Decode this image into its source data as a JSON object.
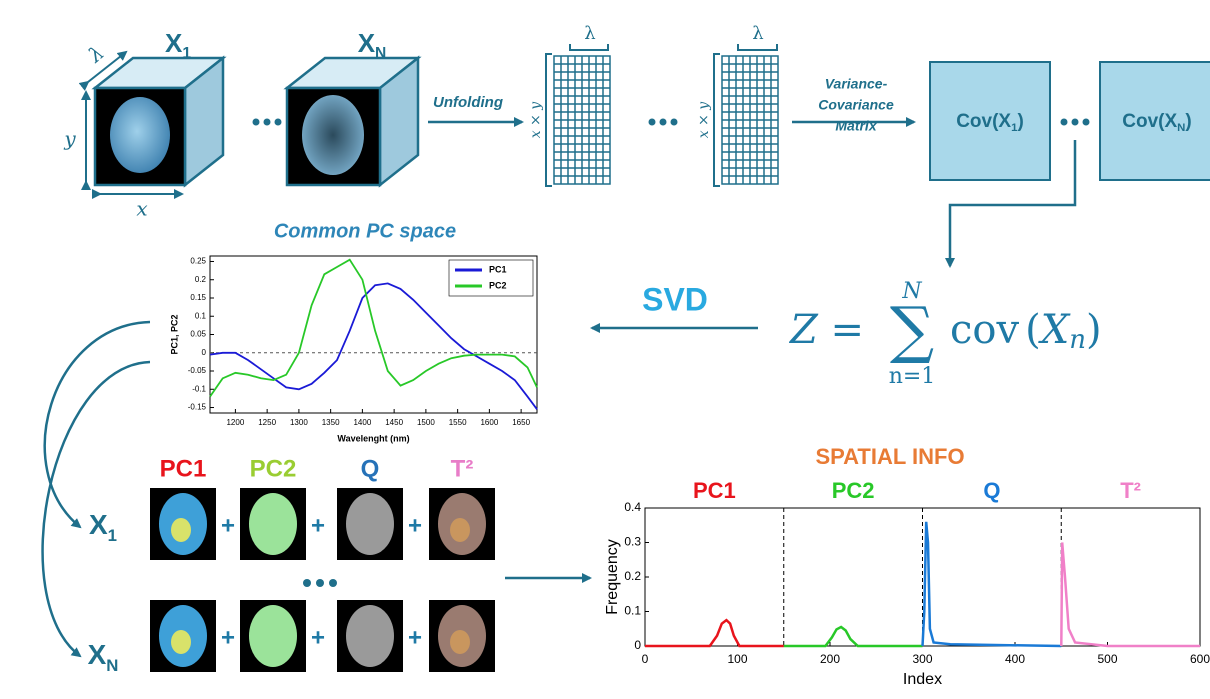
{
  "top": {
    "x1": {
      "base": "X",
      "sub": "1"
    },
    "xn": {
      "base": "X",
      "sub": "N"
    },
    "lambda": "λ",
    "y": "y",
    "x": "x",
    "unfolding": "Unfolding",
    "matrix_lambda": "λ",
    "matrix_rows": "x × y",
    "vcm": [
      "Variance-",
      "Covariance",
      "Matrix"
    ],
    "cov1": {
      "base": "Cov(X",
      "sub": "1",
      "end": ")"
    },
    "covn": {
      "base": "Cov(X",
      "sub": "N",
      "end": ")"
    }
  },
  "pc_title": "Common PC space",
  "svd": "SVD",
  "formula": {
    "lhs": "Z =",
    "sigma": "∑",
    "upper": "N",
    "lower": "n=1",
    "term": "cov",
    "open": "(",
    "arg": "X",
    "arg_sub": "n",
    "close": ")"
  },
  "bottom": {
    "labels": [
      "PC1",
      "PC2",
      "Q",
      "T²"
    ],
    "label_colors": [
      "#e8141c",
      "#9acd32",
      "#2672b8",
      "#e87dc8"
    ],
    "x1": {
      "base": "X",
      "sub": "1"
    },
    "xn": {
      "base": "X",
      "sub": "N"
    },
    "plus": "+"
  },
  "chart_data": [
    {
      "type": "line",
      "x": [
        1160,
        1180,
        1200,
        1220,
        1240,
        1260,
        1280,
        1300,
        1320,
        1340,
        1360,
        1380,
        1400,
        1420,
        1440,
        1460,
        1480,
        1500,
        1520,
        1540,
        1560,
        1580,
        1600,
        1620,
        1640,
        1660,
        1675
      ],
      "series": [
        {
          "name": "PC1",
          "color": "#1a1ad6",
          "values": [
            -0.005,
            0.0,
            0.0,
            -0.02,
            -0.045,
            -0.07,
            -0.095,
            -0.1,
            -0.085,
            -0.055,
            -0.02,
            0.06,
            0.15,
            0.185,
            0.19,
            0.175,
            0.145,
            0.11,
            0.075,
            0.04,
            0.01,
            -0.01,
            -0.03,
            -0.05,
            -0.075,
            -0.12,
            -0.155
          ]
        },
        {
          "name": "PC2",
          "color": "#28c828",
          "values": [
            -0.12,
            -0.07,
            -0.055,
            -0.06,
            -0.07,
            -0.075,
            -0.06,
            0.0,
            0.13,
            0.215,
            0.235,
            0.255,
            0.2,
            0.06,
            -0.05,
            -0.09,
            -0.075,
            -0.05,
            -0.03,
            -0.015,
            -0.008,
            -0.005,
            -0.005,
            -0.005,
            -0.01,
            -0.04,
            -0.095
          ]
        }
      ],
      "xlim": [
        1160,
        1675
      ],
      "ylim": [
        -0.165,
        0.265
      ],
      "xticks": [
        1200,
        1250,
        1300,
        1350,
        1400,
        1450,
        1500,
        1550,
        1600,
        1650
      ],
      "yticks": [
        -0.15,
        -0.1,
        -0.05,
        0,
        0.05,
        0.1,
        0.15,
        0.2,
        0.25
      ],
      "xlabel": "Wavelenght (nm)",
      "ylabel": "PC1, PC2",
      "hline": 0,
      "legend": "upper right"
    },
    {
      "type": "line",
      "title": "SPATIAL INFO",
      "series": [
        {
          "name": "PC1",
          "color": "#e8141c",
          "x": [
            0,
            70,
            78,
            83,
            88,
            92,
            96,
            102,
            150
          ],
          "values": [
            0,
            0,
            0.03,
            0.065,
            0.075,
            0.065,
            0.03,
            0,
            0
          ]
        },
        {
          "name": "PC2",
          "color": "#28c828",
          "x": [
            150,
            195,
            202,
            207,
            212,
            217,
            222,
            230,
            300
          ],
          "values": [
            0,
            0,
            0.025,
            0.048,
            0.055,
            0.045,
            0.02,
            0,
            0
          ]
        },
        {
          "name": "Q",
          "color": "#1a7ad6",
          "x": [
            300,
            302,
            304,
            306,
            308,
            312,
            330,
            450
          ],
          "values": [
            0,
            0.1,
            0.36,
            0.3,
            0.05,
            0.01,
            0.005,
            0
          ]
        },
        {
          "name": "T²",
          "color": "#f080c8",
          "x": [
            450,
            451,
            454,
            458,
            465,
            500,
            600
          ],
          "values": [
            0,
            0.3,
            0.2,
            0.05,
            0.01,
            0,
            0
          ]
        }
      ],
      "xlim": [
        0,
        600
      ],
      "ylim": [
        0,
        0.4
      ],
      "xticks": [
        0,
        100,
        200,
        300,
        400,
        500,
        600
      ],
      "yticks": [
        0,
        0.1,
        0.2,
        0.3,
        0.4
      ],
      "xlabel": "Index",
      "ylabel": "Frequency",
      "dividers": [
        150,
        300,
        450
      ],
      "legend": false
    }
  ]
}
